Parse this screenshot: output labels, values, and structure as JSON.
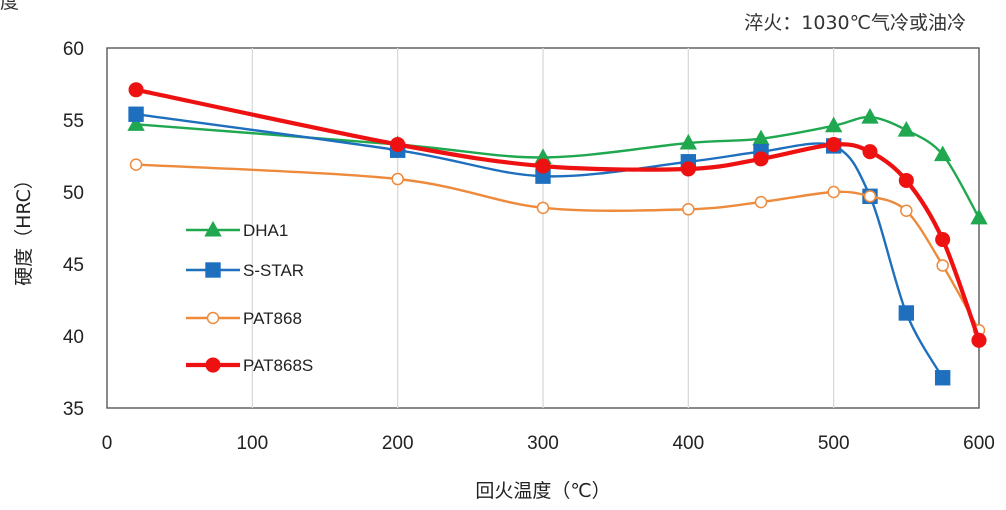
{
  "chart_data": {
    "type": "line",
    "title": "",
    "corner_text": "度",
    "annotation": "淬火：1030℃气冷或油冷",
    "xlabel": "回火温度（℃）",
    "ylabel": "硬度（HRC）",
    "xlim": [
      0,
      600
    ],
    "ylim": [
      35,
      60
    ],
    "xticks": [
      0,
      100,
      200,
      300,
      400,
      500,
      600
    ],
    "yticks": [
      35,
      40,
      45,
      50,
      55,
      60
    ],
    "grid": "vertical",
    "legend_position": "left-bottom inside plot",
    "series": [
      {
        "name": "DHA1",
        "color": "#1fa84f",
        "marker": "triangle",
        "x": [
          20,
          200,
          300,
          400,
          450,
          500,
          525,
          550,
          575,
          600
        ],
        "values": [
          54.7,
          53.3,
          52.4,
          53.4,
          53.7,
          54.6,
          55.2,
          54.3,
          52.6,
          48.2
        ]
      },
      {
        "name": "S-STAR",
        "color": "#1f6fbf",
        "marker": "square",
        "x": [
          20,
          200,
          300,
          400,
          450,
          500,
          525,
          550,
          575
        ],
        "values": [
          55.4,
          52.9,
          51.1,
          52.1,
          52.8,
          53.2,
          49.7,
          41.6,
          37.1
        ]
      },
      {
        "name": "PAT868",
        "color": "#ed8a3c",
        "marker": "open-circle",
        "x": [
          20,
          200,
          300,
          400,
          450,
          500,
          525,
          550,
          575,
          600
        ],
        "values": [
          51.9,
          50.9,
          48.9,
          48.8,
          49.3,
          50.0,
          49.7,
          48.7,
          44.9,
          40.4
        ]
      },
      {
        "name": "PAT868S",
        "color": "#ee1111",
        "marker": "filled-circle",
        "x": [
          20,
          200,
          300,
          400,
          450,
          500,
          525,
          550,
          575,
          600
        ],
        "values": [
          57.1,
          53.3,
          51.8,
          51.6,
          52.3,
          53.3,
          52.8,
          50.8,
          46.7,
          39.7
        ]
      }
    ]
  }
}
